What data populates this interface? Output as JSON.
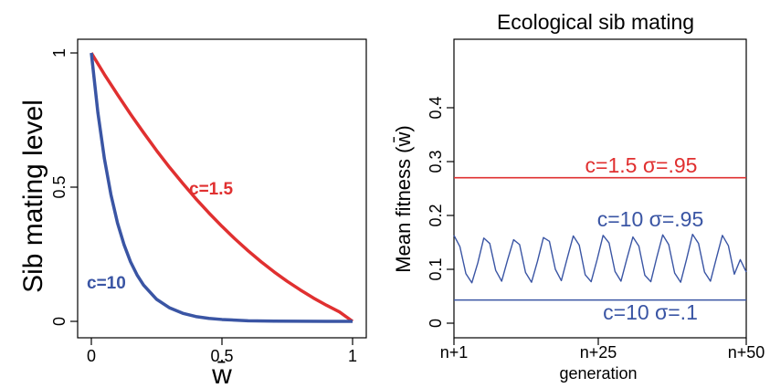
{
  "chart_data": [
    {
      "type": "line",
      "title": "",
      "xlabel": "w̄",
      "ylabel": "Sib mating level",
      "xlim": [
        0,
        1
      ],
      "ylim": [
        0,
        1
      ],
      "x_ticks": [
        "0",
        "0.5",
        "1"
      ],
      "y_ticks": [
        "0",
        "0.5",
        "1"
      ],
      "series": [
        {
          "name": "c=1.5",
          "color": "#e03030",
          "x": [
            0,
            0.05,
            0.1,
            0.15,
            0.2,
            0.25,
            0.3,
            0.35,
            0.4,
            0.45,
            0.5,
            0.55,
            0.6,
            0.65,
            0.7,
            0.75,
            0.8,
            0.85,
            0.9,
            0.95,
            1
          ],
          "y": [
            1,
            0.92,
            0.845,
            0.772,
            0.703,
            0.636,
            0.573,
            0.514,
            0.457,
            0.404,
            0.354,
            0.307,
            0.263,
            0.222,
            0.184,
            0.149,
            0.117,
            0.087,
            0.06,
            0.035,
            0
          ]
        },
        {
          "name": "c=10",
          "color": "#3a55a4",
          "x": [
            0,
            0.025,
            0.05,
            0.075,
            0.1,
            0.125,
            0.15,
            0.175,
            0.2,
            0.25,
            0.3,
            0.35,
            0.4,
            0.45,
            0.5,
            0.6,
            0.7,
            0.8,
            0.9,
            1
          ],
          "y": [
            1,
            0.778,
            0.606,
            0.472,
            0.367,
            0.286,
            0.222,
            0.173,
            0.135,
            0.082,
            0.05,
            0.03,
            0.018,
            0.011,
            0.007,
            0.002,
            0.001,
            0.0003,
            0.0001,
            0
          ]
        }
      ]
    },
    {
      "type": "line",
      "title": "Ecological sib mating",
      "xlabel": "generation",
      "ylabel": "Mean fitness (w̄)",
      "xlim": [
        1,
        50
      ],
      "ylim": [
        -0.01,
        0.48
      ],
      "x_ticks": [
        "n+1",
        "n+25",
        "n+50"
      ],
      "y_ticks": [
        "0",
        "0.1",
        "0.2",
        "0.3",
        "0.4"
      ],
      "series": [
        {
          "name": "c=1.5 σ=.95",
          "color": "#e03030",
          "x": [
            1,
            50
          ],
          "y": [
            0.27,
            0.27
          ]
        },
        {
          "name": "c=10 σ=.95",
          "color": "#3a55a4",
          "x": [
            1,
            2,
            3,
            4,
            5,
            6,
            7,
            8,
            9,
            10,
            11,
            12,
            13,
            14,
            15,
            16,
            17,
            18,
            19,
            20,
            21,
            22,
            23,
            24,
            25,
            26,
            27,
            28,
            29,
            30,
            31,
            32,
            33,
            34,
            35,
            36,
            37,
            38,
            39,
            40,
            41,
            42,
            43,
            44,
            45,
            46,
            47,
            48,
            49,
            50
          ],
          "y": [
            0.163,
            0.142,
            0.092,
            0.075,
            0.112,
            0.158,
            0.148,
            0.098,
            0.078,
            0.118,
            0.155,
            0.146,
            0.094,
            0.076,
            0.115,
            0.159,
            0.152,
            0.1,
            0.079,
            0.121,
            0.162,
            0.145,
            0.09,
            0.077,
            0.118,
            0.163,
            0.149,
            0.096,
            0.078,
            0.12,
            0.16,
            0.143,
            0.089,
            0.077,
            0.122,
            0.164,
            0.146,
            0.093,
            0.076,
            0.119,
            0.165,
            0.148,
            0.095,
            0.078,
            0.121,
            0.163,
            0.144,
            0.091,
            0.118,
            0.095
          ]
        },
        {
          "name": "c=10 σ=.1",
          "color": "#3a55a4",
          "x": [
            1,
            50
          ],
          "y": [
            0.043,
            0.043
          ]
        }
      ]
    }
  ]
}
